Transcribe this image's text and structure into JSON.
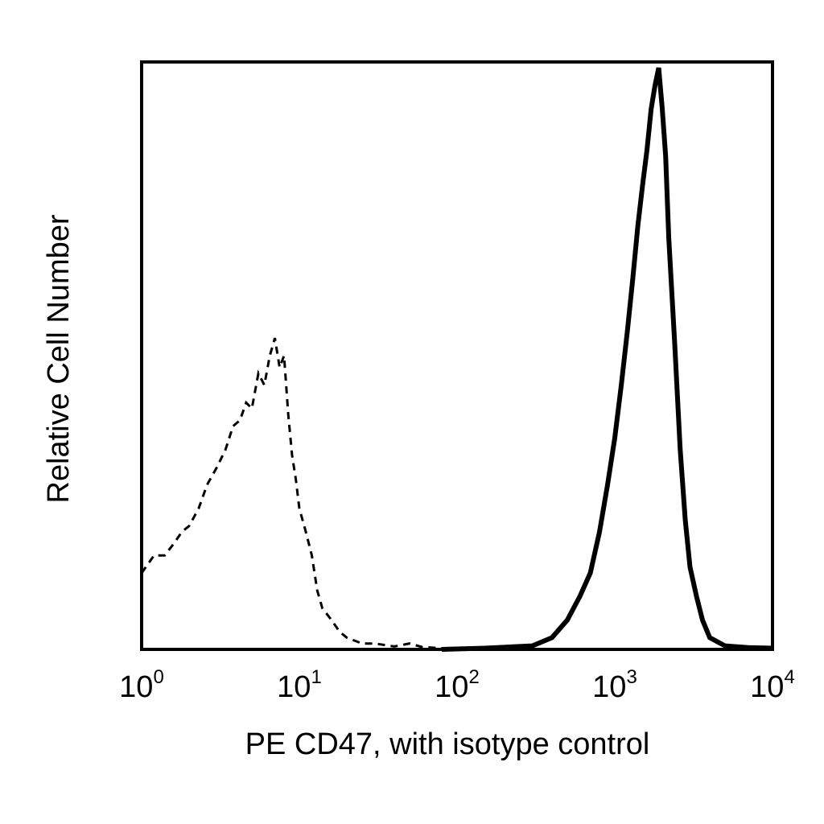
{
  "chart_data": {
    "type": "area",
    "xlabel": "PE CD47, with isotype control",
    "ylabel": "Relative Cell Number",
    "x_scale": "log",
    "xlim": [
      1,
      10000
    ],
    "ylim": [
      0,
      100
    ],
    "grid": false,
    "legend": "none",
    "x_ticks": [
      {
        "value": 1,
        "base": "10",
        "exp": "0"
      },
      {
        "value": 10,
        "base": "10",
        "exp": "1"
      },
      {
        "value": 100,
        "base": "10",
        "exp": "2"
      },
      {
        "value": 1000,
        "base": "10",
        "exp": "3"
      },
      {
        "value": 10000,
        "base": "10",
        "exp": "4"
      }
    ],
    "series": [
      {
        "style": "dashed",
        "color": "#000000",
        "x": [
          1.0,
          1.2,
          1.4,
          1.6,
          1.8,
          2.0,
          2.3,
          2.6,
          3.0,
          3.4,
          3.8,
          4.2,
          4.6,
          5.0,
          5.5,
          6.0,
          6.5,
          7.0,
          7.5,
          8.0,
          8.5,
          9.0,
          9.5,
          10.0,
          11.0,
          12.0,
          13.0,
          14.0,
          16.0,
          18.0,
          20.0,
          25.0,
          30.0,
          40.0,
          50.0,
          60.0,
          80.0
        ],
        "y": [
          13,
          16,
          16,
          18,
          20,
          21,
          24,
          28,
          31,
          34,
          38,
          39,
          42,
          41,
          47,
          45,
          50,
          53,
          48,
          50,
          40,
          33,
          29,
          24,
          20,
          16,
          10,
          7,
          5,
          3,
          2,
          1,
          1,
          0.5,
          1,
          0.4,
          0.2
        ]
      },
      {
        "style": "solid",
        "color": "#000000",
        "x": [
          80,
          150,
          300,
          400,
          500,
          600,
          700,
          800,
          900,
          1000,
          1100,
          1200,
          1300,
          1400,
          1500,
          1600,
          1700,
          1800,
          1900,
          2000,
          2100,
          2200,
          2400,
          2600,
          2800,
          3000,
          3300,
          3600,
          4000,
          5000,
          7000,
          10000
        ],
        "y": [
          0,
          0.2,
          0.6,
          2,
          5,
          9,
          13,
          20,
          28,
          36,
          45,
          54,
          63,
          72,
          79,
          85,
          92,
          96,
          99,
          92,
          84,
          70,
          52,
          34,
          22,
          14,
          9,
          5,
          2,
          0.6,
          0.3,
          0.2
        ]
      }
    ]
  }
}
